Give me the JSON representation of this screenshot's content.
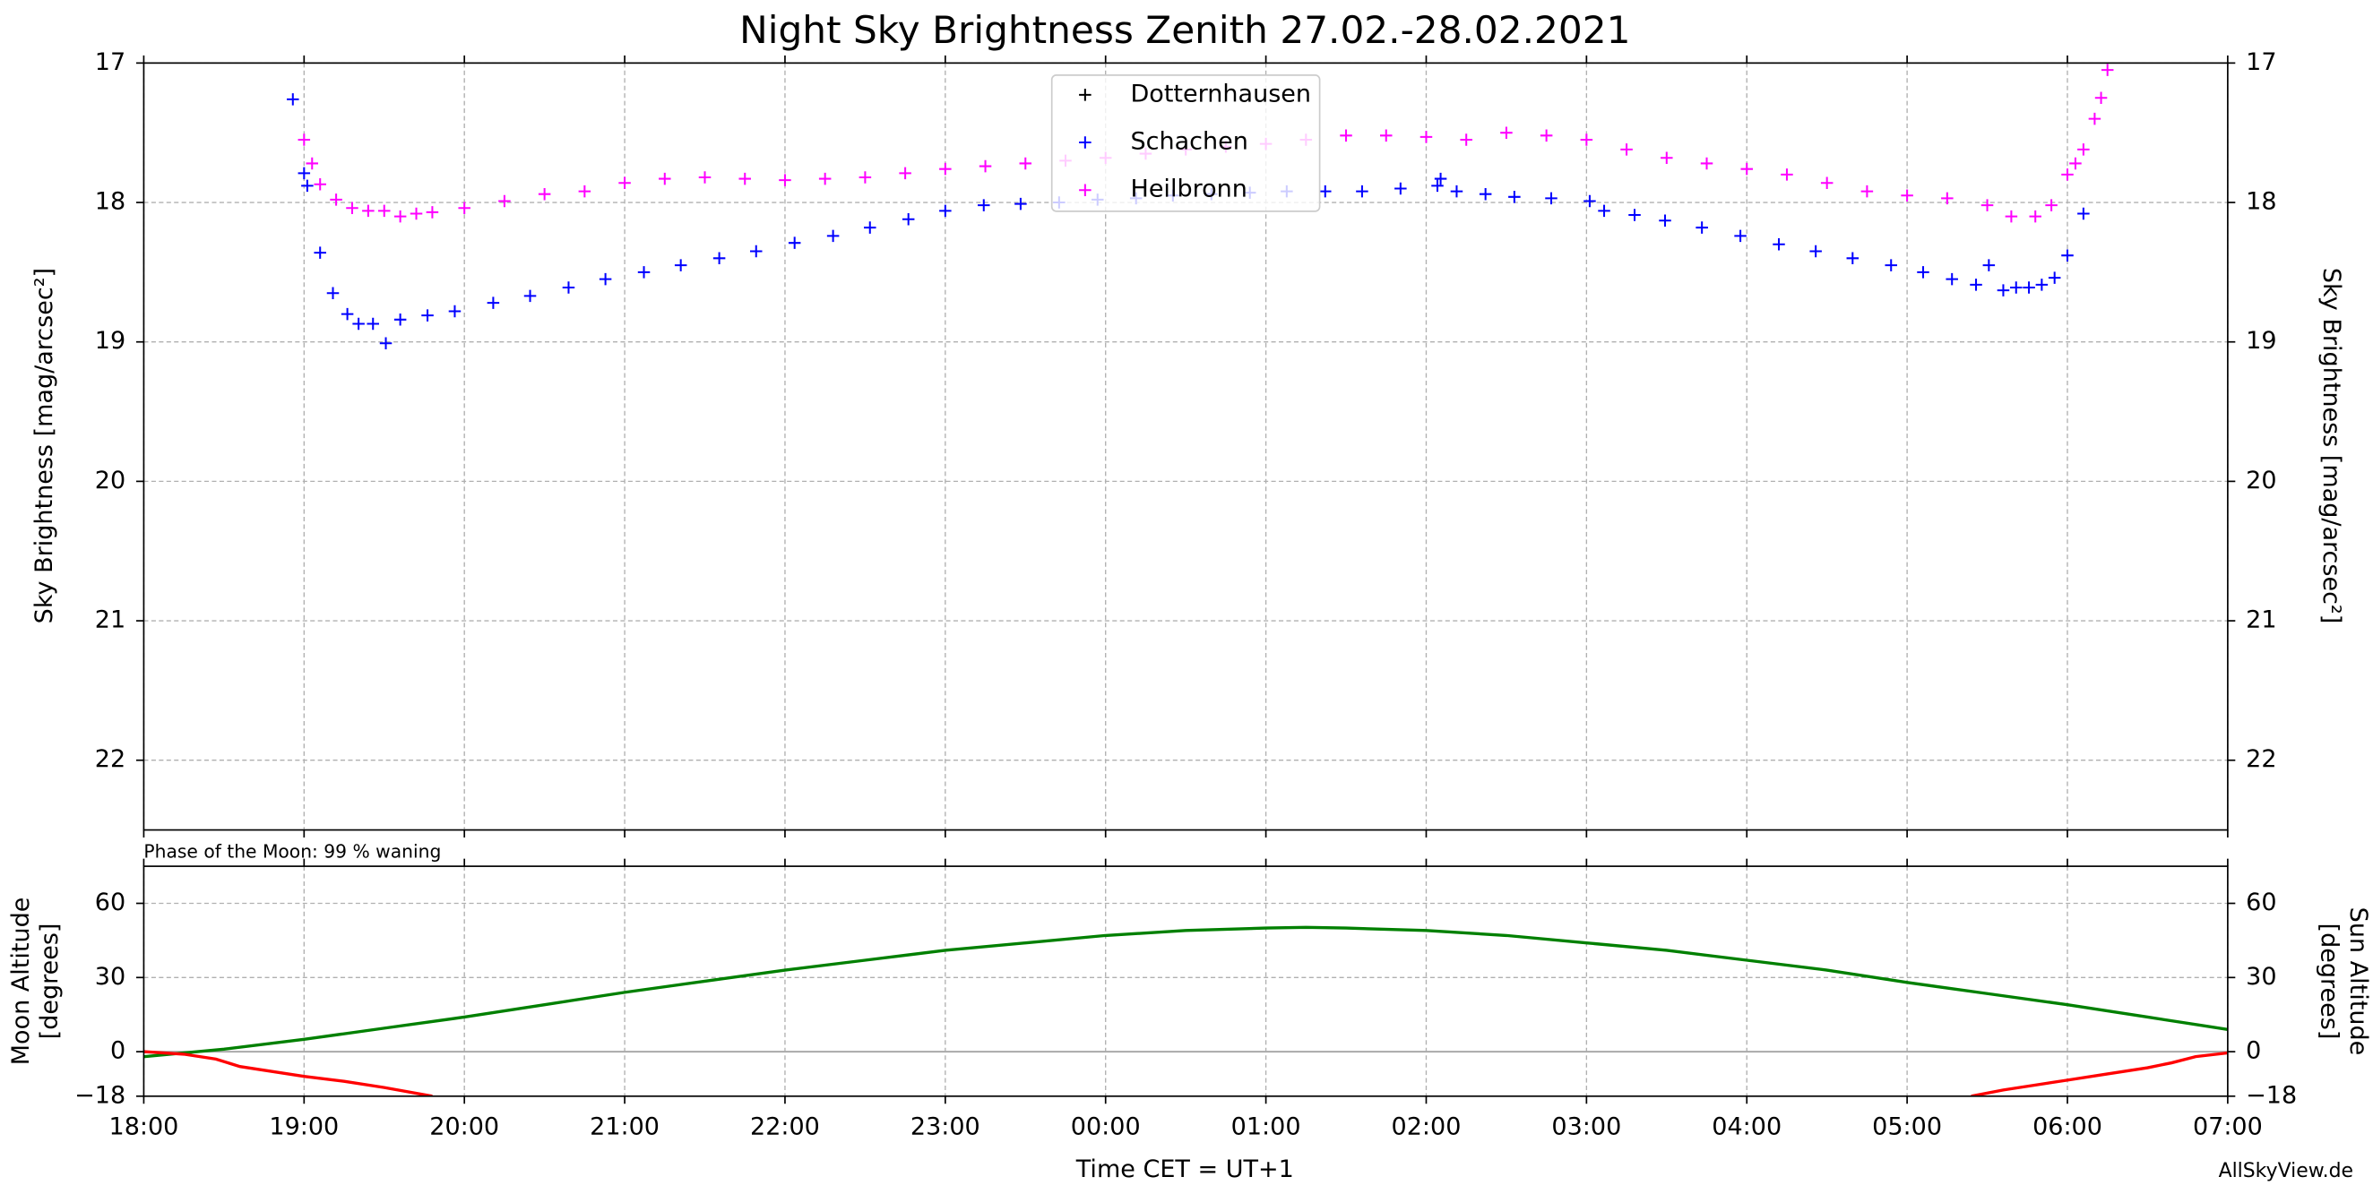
{
  "chart_data": [
    {
      "type": "scatter",
      "title": "Night Sky Brightness Zenith 27.02.-28.02.2021",
      "ylabel": "Sky Brightness [mag/arcsec²]",
      "y2label": "Sky Brightness [mag/arcsec²]",
      "xlim": [
        18,
        31
      ],
      "xticks": [
        {
          "value": 18,
          "label": "18:00"
        },
        {
          "value": 19,
          "label": "19:00"
        },
        {
          "value": 20,
          "label": "20:00"
        },
        {
          "value": 21,
          "label": "21:00"
        },
        {
          "value": 22,
          "label": "22:00"
        },
        {
          "value": 23,
          "label": "23:00"
        },
        {
          "value": 24,
          "label": "00:00"
        },
        {
          "value": 25,
          "label": "01:00"
        },
        {
          "value": 26,
          "label": "02:00"
        },
        {
          "value": 27,
          "label": "03:00"
        },
        {
          "value": 28,
          "label": "04:00"
        },
        {
          "value": 29,
          "label": "05:00"
        },
        {
          "value": 30,
          "label": "06:00"
        },
        {
          "value": 31,
          "label": "07:00"
        }
      ],
      "ylim": [
        17,
        22.5
      ],
      "y_inverted": true,
      "yticks": [
        17,
        18,
        19,
        20,
        21,
        22
      ],
      "grid": true,
      "legend": "upper center",
      "marker": "+",
      "series": [
        {
          "name": "Dotternhausen",
          "color": "#000000",
          "x": [],
          "values": []
        },
        {
          "name": "Schachen",
          "color": "#0000ff",
          "x": [
            18.93,
            19.0,
            19.02,
            19.1,
            19.18,
            19.27,
            19.34,
            19.43,
            19.51,
            19.6,
            19.77,
            19.94,
            20.18,
            20.41,
            20.65,
            20.88,
            21.12,
            21.35,
            21.59,
            21.82,
            22.06,
            22.3,
            22.53,
            22.77,
            23.0,
            23.24,
            23.47,
            23.71,
            23.95,
            24.19,
            24.42,
            24.66,
            24.9,
            25.13,
            25.37,
            25.6,
            25.84,
            26.07,
            26.09,
            26.19,
            26.37,
            26.55,
            26.78,
            27.02,
            27.11,
            27.3,
            27.49,
            27.72,
            27.96,
            28.2,
            28.43,
            28.66,
            28.9,
            29.1,
            29.28,
            29.43,
            29.51,
            29.6,
            29.68,
            29.76,
            29.84,
            29.92,
            30.0,
            30.1
          ],
          "values": [
            17.26,
            17.79,
            17.88,
            18.36,
            18.65,
            18.8,
            18.87,
            18.87,
            19.01,
            18.84,
            18.81,
            18.78,
            18.72,
            18.67,
            18.61,
            18.55,
            18.5,
            18.45,
            18.4,
            18.35,
            18.29,
            18.24,
            18.18,
            18.12,
            18.06,
            18.02,
            18.01,
            18.0,
            17.98,
            17.97,
            17.95,
            17.94,
            17.93,
            17.92,
            17.92,
            17.92,
            17.9,
            17.88,
            17.83,
            17.92,
            17.94,
            17.96,
            17.97,
            17.99,
            18.06,
            18.09,
            18.13,
            18.18,
            18.24,
            18.3,
            18.35,
            18.4,
            18.45,
            18.5,
            18.55,
            18.59,
            18.45,
            18.63,
            18.61,
            18.61,
            18.59,
            18.54,
            18.38,
            18.08
          ]
        },
        {
          "name": "Heilbronn",
          "color": "#ff00ff",
          "x": [
            19.0,
            19.05,
            19.1,
            19.2,
            19.3,
            19.4,
            19.5,
            19.6,
            19.7,
            19.8,
            20.0,
            20.25,
            20.5,
            20.75,
            21.0,
            21.25,
            21.5,
            21.75,
            22.0,
            22.25,
            22.5,
            22.75,
            23.0,
            23.25,
            23.5,
            23.75,
            24.0,
            24.25,
            24.5,
            24.75,
            25.0,
            25.25,
            25.5,
            25.75,
            26.0,
            26.25,
            26.5,
            26.75,
            27.0,
            27.25,
            27.5,
            27.75,
            28.0,
            28.25,
            28.5,
            28.75,
            29.0,
            29.25,
            29.5,
            29.65,
            29.8,
            29.9,
            30.0,
            30.05,
            30.1,
            30.17,
            30.21,
            30.25
          ],
          "values": [
            17.55,
            17.72,
            17.87,
            17.98,
            18.04,
            18.06,
            18.06,
            18.1,
            18.08,
            18.07,
            18.04,
            17.99,
            17.94,
            17.92,
            17.86,
            17.83,
            17.82,
            17.83,
            17.84,
            17.83,
            17.82,
            17.79,
            17.76,
            17.74,
            17.72,
            17.7,
            17.68,
            17.65,
            17.62,
            17.6,
            17.58,
            17.55,
            17.52,
            17.52,
            17.53,
            17.55,
            17.5,
            17.52,
            17.55,
            17.62,
            17.68,
            17.72,
            17.76,
            17.8,
            17.86,
            17.92,
            17.95,
            17.97,
            18.02,
            18.1,
            18.1,
            18.02,
            17.8,
            17.72,
            17.62,
            17.4,
            17.25,
            17.05
          ]
        }
      ]
    },
    {
      "type": "line",
      "annotation": "Phase of the Moon: 99 % waning",
      "xlabel": "Time CET = UT+1",
      "source": "AllSkyView.de",
      "xlim": [
        18,
        31
      ],
      "xticks": [
        {
          "value": 18,
          "label": "18:00"
        },
        {
          "value": 19,
          "label": "19:00"
        },
        {
          "value": 20,
          "label": "20:00"
        },
        {
          "value": 21,
          "label": "21:00"
        },
        {
          "value": 22,
          "label": "22:00"
        },
        {
          "value": 23,
          "label": "23:00"
        },
        {
          "value": 24,
          "label": "00:00"
        },
        {
          "value": 25,
          "label": "01:00"
        },
        {
          "value": 26,
          "label": "02:00"
        },
        {
          "value": 27,
          "label": "03:00"
        },
        {
          "value": 28,
          "label": "04:00"
        },
        {
          "value": 29,
          "label": "05:00"
        },
        {
          "value": 30,
          "label": "06:00"
        },
        {
          "value": 31,
          "label": "07:00"
        }
      ],
      "ylim": [
        -18,
        75
      ],
      "yticks": [
        {
          "value": -18,
          "label": "−18"
        },
        0,
        30,
        60
      ],
      "y2lim": [
        -18,
        75
      ],
      "y2ticks": [
        {
          "value": -18,
          "label": "−18"
        },
        0,
        30,
        60
      ],
      "ylabel": [
        "Moon Altitude",
        "[degrees]"
      ],
      "y2label": [
        "Sun Altitude",
        "[degrees]"
      ],
      "grid": true,
      "series": [
        {
          "name": "Moon Altitude",
          "color": "#008000",
          "axis": "y",
          "x": [
            18.0,
            18.5,
            19.0,
            19.5,
            20.0,
            20.5,
            21.0,
            21.5,
            22.0,
            22.5,
            23.0,
            23.5,
            24.0,
            24.5,
            25.0,
            25.25,
            25.5,
            26.0,
            26.5,
            27.0,
            27.5,
            28.0,
            28.5,
            29.0,
            29.5,
            30.0,
            30.5,
            31.0
          ],
          "values": [
            -2,
            1,
            5,
            9.5,
            14,
            19,
            24,
            28.5,
            33,
            37,
            41,
            44,
            47,
            49,
            50,
            50.3,
            50,
            49,
            47,
            44,
            41,
            37,
            33,
            28,
            23.5,
            19,
            14,
            9
          ]
        },
        {
          "name": "Sun Altitude",
          "color": "#ff0000",
          "axis": "y2",
          "x": [
            18.0,
            18.25,
            18.45,
            18.6,
            18.8,
            19.0,
            19.25,
            19.5,
            19.8,
            25.0,
            29.4,
            29.6,
            29.8,
            30.0,
            30.25,
            30.5,
            30.65,
            30.8,
            31.0
          ],
          "values": [
            0,
            -1,
            -3,
            -6,
            -8,
            -10,
            -12,
            -14.5,
            -18,
            null,
            -18,
            -15.5,
            -13.5,
            -11.5,
            -9,
            -6.5,
            -4.5,
            -2,
            -0.5
          ]
        }
      ]
    }
  ]
}
